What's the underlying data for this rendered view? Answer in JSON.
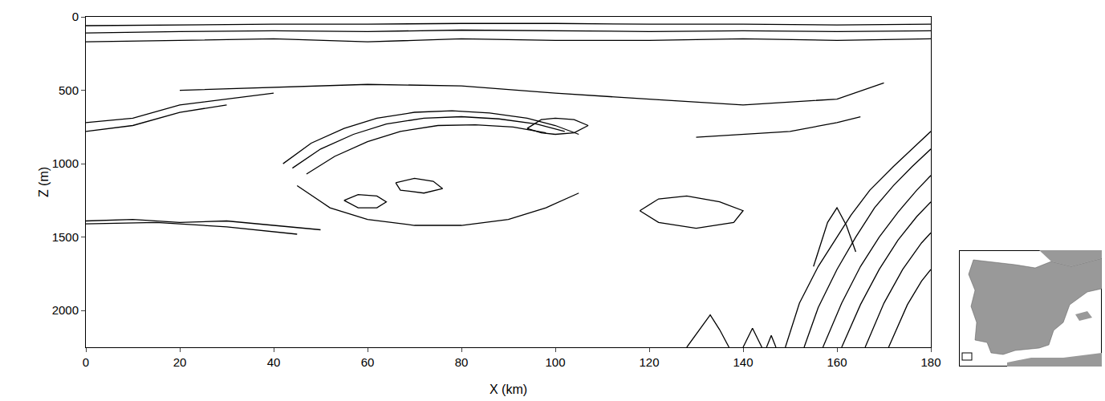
{
  "chart_data": {
    "type": "line",
    "xlabel": "X (km)",
    "ylabel": "Z (m)",
    "xlim": [
      0,
      180
    ],
    "ylim": [
      2250,
      0
    ],
    "xticks": [
      0,
      20,
      40,
      60,
      80,
      100,
      120,
      140,
      160,
      180
    ],
    "yticks": [
      0,
      500,
      1000,
      1500,
      2000
    ],
    "grid": false,
    "series": [
      {
        "color": "#000000",
        "x": [
          0,
          20,
          40,
          60,
          80,
          100,
          120,
          140,
          160,
          180
        ],
        "values": [
          60,
          55,
          50,
          50,
          45,
          45,
          50,
          50,
          55,
          50
        ]
      },
      {
        "color": "#000000",
        "x": [
          0,
          20,
          40,
          60,
          80,
          100,
          120,
          140,
          160,
          180
        ],
        "values": [
          110,
          100,
          95,
          100,
          90,
          95,
          100,
          95,
          100,
          95
        ]
      },
      {
        "color": "#000000",
        "x": [
          0,
          20,
          40,
          60,
          80,
          100,
          120,
          140,
          160,
          180
        ],
        "values": [
          170,
          160,
          150,
          170,
          150,
          160,
          160,
          150,
          160,
          150
        ]
      },
      {
        "color": "#000000",
        "x": [
          0,
          10,
          20,
          30,
          40
        ],
        "values": [
          720,
          690,
          600,
          560,
          520
        ]
      },
      {
        "color": "#000000",
        "x": [
          0,
          10,
          20,
          30
        ],
        "values": [
          780,
          740,
          650,
          600
        ]
      },
      {
        "color": "#000000",
        "x": [
          20,
          40,
          60,
          80,
          100,
          120,
          140,
          160,
          170
        ],
        "values": [
          500,
          480,
          460,
          470,
          520,
          560,
          600,
          560,
          450
        ]
      },
      {
        "color": "#000000",
        "x": [
          130,
          140,
          150,
          160,
          165
        ],
        "values": [
          820,
          800,
          780,
          720,
          680
        ]
      },
      {
        "color": "#000000",
        "x": [
          42,
          48,
          55,
          62,
          70,
          78,
          86,
          94,
          100,
          105
        ],
        "values": [
          1000,
          860,
          760,
          690,
          650,
          640,
          655,
          690,
          740,
          800
        ]
      },
      {
        "color": "#000000",
        "x": [
          44,
          50,
          57,
          64,
          72,
          80,
          88,
          96,
          102
        ],
        "values": [
          1030,
          900,
          800,
          730,
          690,
          680,
          695,
          730,
          780
        ]
      },
      {
        "color": "#000000",
        "x": [
          47,
          53,
          60,
          67,
          75,
          83,
          91,
          98
        ],
        "values": [
          1070,
          950,
          850,
          780,
          740,
          735,
          750,
          790
        ]
      },
      {
        "color": "#000000",
        "x": [
          45,
          52,
          60,
          70,
          80,
          90,
          98,
          105
        ],
        "values": [
          1150,
          1300,
          1380,
          1420,
          1420,
          1380,
          1300,
          1200
        ]
      },
      {
        "color": "#000000",
        "x": [
          55,
          58,
          62,
          64,
          62,
          58,
          55
        ],
        "values": [
          1250,
          1210,
          1220,
          1260,
          1300,
          1300,
          1250
        ]
      },
      {
        "color": "#000000",
        "x": [
          66,
          70,
          74,
          76,
          72,
          67,
          66
        ],
        "values": [
          1130,
          1100,
          1120,
          1170,
          1200,
          1180,
          1130
        ]
      },
      {
        "color": "#000000",
        "x": [
          94,
          97,
          100,
          104,
          107,
          104,
          100,
          97,
          94
        ],
        "values": [
          760,
          700,
          690,
          700,
          740,
          790,
          800,
          790,
          760
        ]
      },
      {
        "color": "#000000",
        "x": [
          118,
          122,
          128,
          135,
          140,
          138,
          130,
          122,
          118
        ],
        "values": [
          1320,
          1240,
          1220,
          1260,
          1320,
          1400,
          1440,
          1400,
          1320
        ]
      },
      {
        "color": "#000000",
        "x": [
          0,
          10,
          20,
          30,
          40,
          50
        ],
        "values": [
          1390,
          1380,
          1400,
          1390,
          1420,
          1450
        ]
      },
      {
        "color": "#000000",
        "x": [
          0,
          15,
          30,
          45
        ],
        "values": [
          1410,
          1400,
          1430,
          1480
        ]
      },
      {
        "color": "#000000",
        "x": [
          149,
          152,
          156,
          160,
          163,
          167,
          172,
          176,
          180
        ],
        "values": [
          2250,
          1950,
          1700,
          1500,
          1350,
          1180,
          1020,
          900,
          780
        ]
      },
      {
        "color": "#000000",
        "x": [
          153,
          156,
          160,
          164,
          168,
          172,
          176,
          180
        ],
        "values": [
          2250,
          1980,
          1720,
          1500,
          1300,
          1150,
          1020,
          900
        ]
      },
      {
        "color": "#000000",
        "x": [
          157,
          161,
          165,
          169,
          173,
          177,
          180
        ],
        "values": [
          2250,
          1950,
          1700,
          1500,
          1330,
          1180,
          1080
        ]
      },
      {
        "color": "#000000",
        "x": [
          161,
          165,
          169,
          173,
          177,
          180
        ],
        "values": [
          2250,
          1960,
          1720,
          1520,
          1360,
          1260
        ]
      },
      {
        "color": "#000000",
        "x": [
          166,
          170,
          174,
          178,
          180
        ],
        "values": [
          2250,
          1950,
          1720,
          1540,
          1470
        ]
      },
      {
        "color": "#000000",
        "x": [
          171,
          175,
          178,
          180
        ],
        "values": [
          2250,
          1960,
          1800,
          1720
        ]
      },
      {
        "color": "#000000",
        "x": [
          155,
          158,
          160,
          162,
          164
        ],
        "values": [
          1700,
          1400,
          1300,
          1420,
          1600
        ]
      },
      {
        "color": "#000000",
        "x": [
          128,
          131,
          133,
          135,
          137
        ],
        "values": [
          2250,
          2120,
          2030,
          2130,
          2250
        ]
      },
      {
        "color": "#000000",
        "x": [
          140,
          142,
          144
        ],
        "values": [
          2250,
          2120,
          2250
        ]
      },
      {
        "color": "#000000",
        "x": [
          145,
          146,
          147
        ],
        "values": [
          2250,
          2170,
          2250
        ]
      }
    ]
  }
}
